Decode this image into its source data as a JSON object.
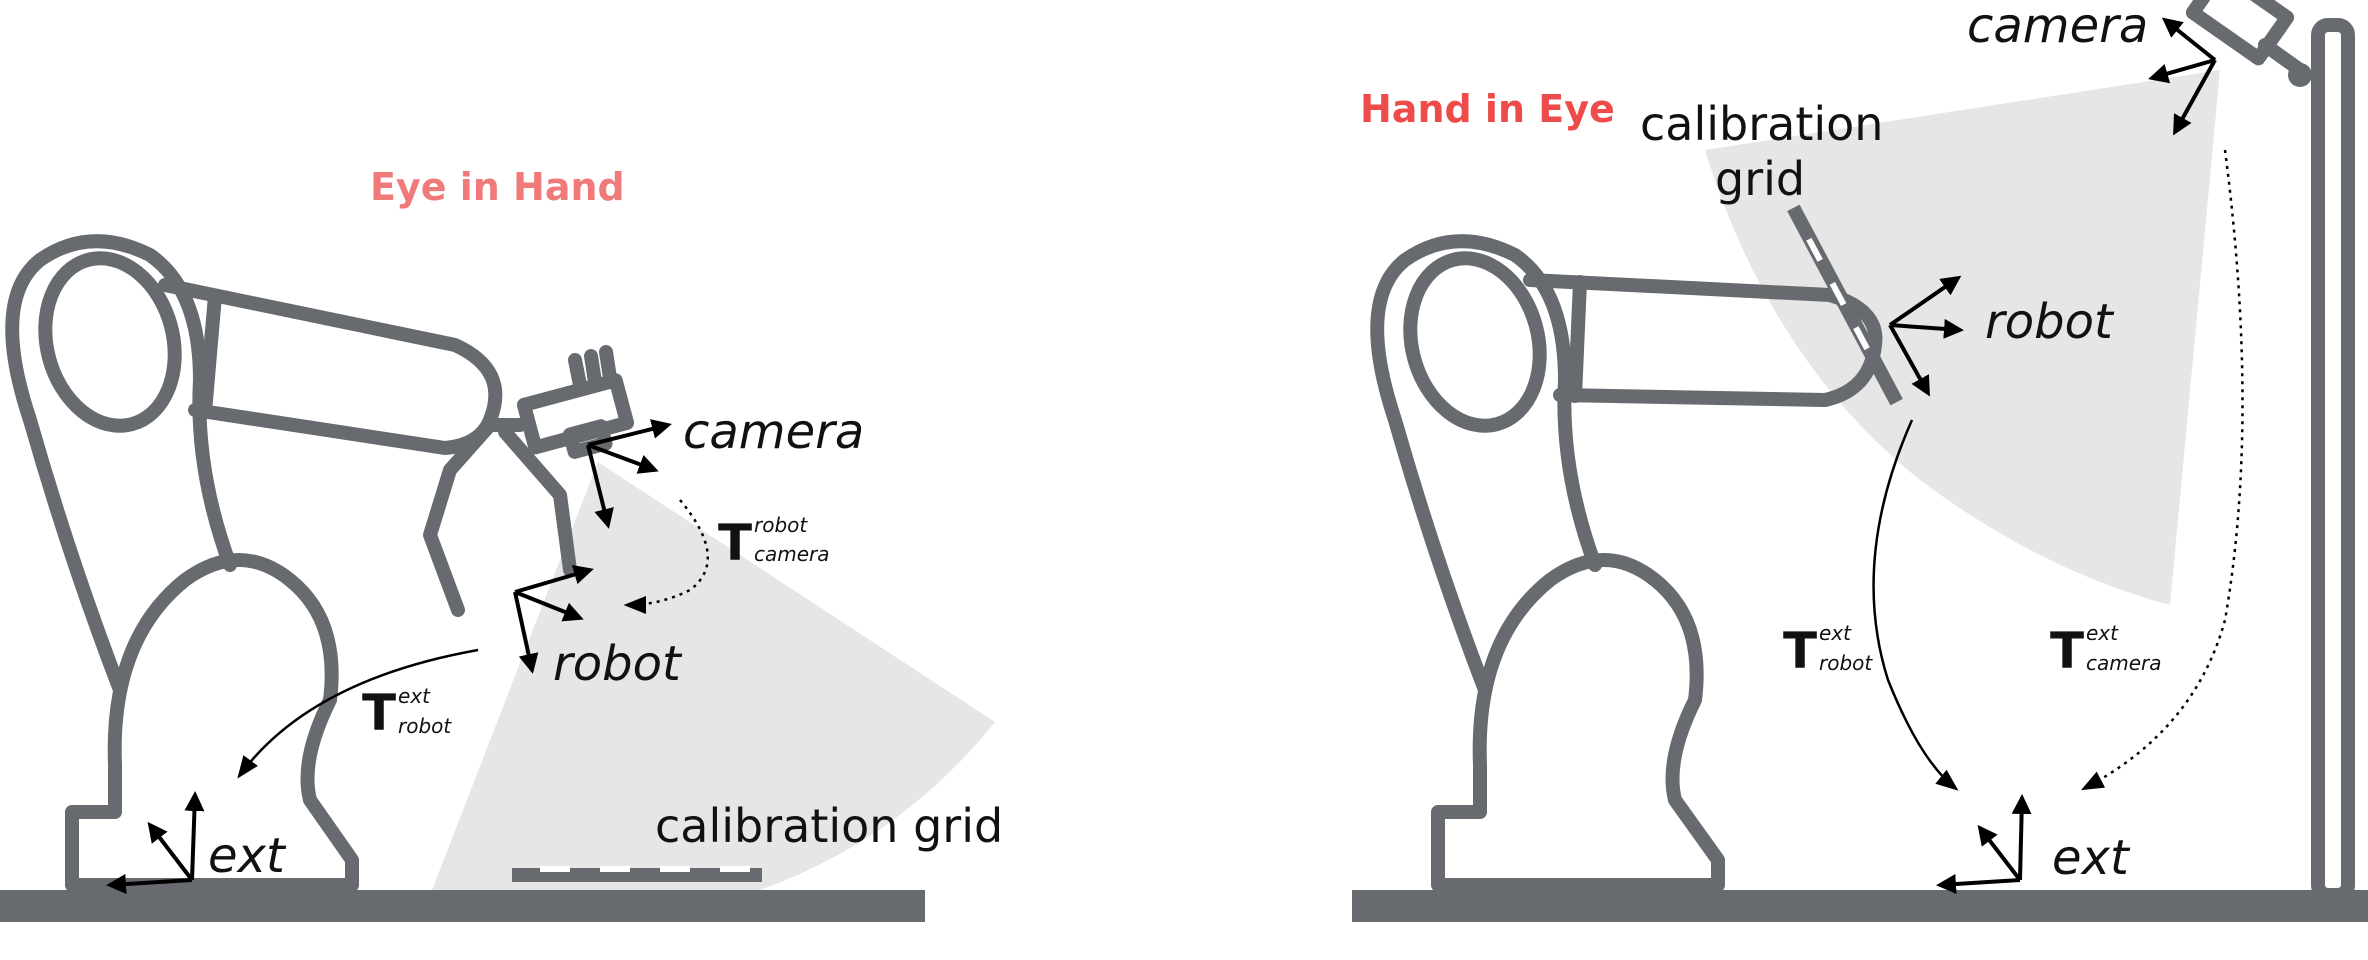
{
  "panels": {
    "eye_in_hand": {
      "title": "Eye in Hand",
      "labels": {
        "camera": "camera",
        "robot": "robot",
        "ext": "ext",
        "calibration_grid": "calibration grid"
      },
      "transforms": [
        {
          "symbol": "T",
          "sup": "robot",
          "sub": "camera"
        },
        {
          "symbol": "T",
          "sup": "ext",
          "sub": "robot"
        }
      ]
    },
    "hand_in_eye": {
      "title": "Hand in Eye",
      "labels": {
        "camera": "camera",
        "robot": "robot",
        "ext": "ext",
        "calibration_grid_line1": "calibration",
        "calibration_grid_line2": "grid"
      },
      "transforms": [
        {
          "symbol": "T",
          "sup": "ext",
          "sub": "robot"
        },
        {
          "symbol": "T",
          "sup": "ext",
          "sub": "camera"
        }
      ]
    }
  },
  "colors": {
    "robot": "#676a6e",
    "title_eye_in_hand": "#f07a7a",
    "title_hand_in_eye": "#ee4b4b",
    "fov": "#e6e6e6",
    "arrows": "#000000"
  }
}
